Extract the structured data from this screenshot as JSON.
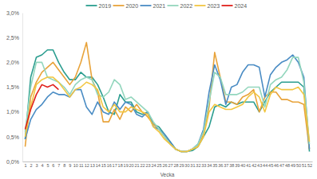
{
  "chart_data": {
    "type": "line",
    "x_label": "Vecka",
    "x": [
      1,
      2,
      3,
      4,
      5,
      6,
      7,
      8,
      9,
      10,
      11,
      12,
      13,
      14,
      15,
      16,
      17,
      18,
      19,
      20,
      21,
      22,
      23,
      24,
      25,
      26,
      27,
      28,
      29,
      30,
      31,
      32,
      33,
      34,
      35,
      36,
      37,
      38,
      39,
      40,
      41,
      42,
      43,
      44,
      45,
      46,
      47,
      48,
      49,
      50,
      51,
      52
    ],
    "xlim": [
      0.5,
      52.5
    ],
    "xticks": [
      1,
      2,
      3,
      4,
      5,
      6,
      7,
      8,
      9,
      10,
      11,
      12,
      13,
      14,
      15,
      16,
      17,
      18,
      19,
      20,
      21,
      22,
      23,
      24,
      25,
      26,
      27,
      28,
      29,
      30,
      31,
      32,
      33,
      34,
      35,
      36,
      37,
      38,
      39,
      40,
      41,
      42,
      43,
      44,
      45,
      46,
      47,
      48,
      49,
      50,
      51,
      52
    ],
    "ylim": [
      0,
      3
    ],
    "yticks": [
      {
        "value": 0,
        "label": "0,0%"
      },
      {
        "value": 0.5,
        "label": "0,5%"
      },
      {
        "value": 1,
        "label": "1,0%"
      },
      {
        "value": 1.5,
        "label": "1,5%"
      },
      {
        "value": 2,
        "label": "2,0%"
      },
      {
        "value": 2.5,
        "label": "2,5%"
      },
      {
        "value": 3,
        "label": "3,0%"
      }
    ],
    "grid": false,
    "legend": "top",
    "series": [
      {
        "name": "2019",
        "color": "#2a9d8f",
        "values": [
          0.45,
          1.7,
          2.1,
          2.15,
          2.25,
          2.25,
          2.0,
          1.8,
          1.65,
          1.65,
          1.8,
          1.7,
          1.7,
          1.55,
          1.3,
          1.0,
          0.95,
          1.35,
          1.2,
          1.2,
          1.0,
          0.95,
          1.0,
          0.75,
          0.7,
          0.55,
          0.4,
          0.25,
          0.2,
          0.2,
          0.22,
          0.3,
          0.5,
          0.7,
          1.1,
          1.15,
          1.1,
          1.2,
          1.15,
          1.2,
          1.2,
          1.2,
          1.0,
          1.2,
          1.4,
          1.5,
          1.6,
          1.6,
          1.6,
          1.6,
          1.5,
          0.2
        ]
      },
      {
        "name": "2020",
        "color": "#e8a33a",
        "values": [
          0.3,
          1.3,
          1.6,
          1.8,
          1.9,
          2.0,
          1.85,
          1.7,
          1.55,
          1.7,
          2.0,
          2.4,
          1.65,
          1.4,
          0.8,
          0.8,
          1.05,
          0.85,
          1.1,
          1.0,
          1.15,
          1.0,
          0.9,
          0.75,
          0.65,
          0.5,
          0.35,
          0.25,
          0.2,
          0.2,
          0.25,
          0.3,
          0.55,
          1.1,
          2.2,
          1.7,
          1.2,
          1.2,
          1.15,
          1.3,
          1.35,
          1.45,
          1.0,
          1.3,
          1.4,
          1.4,
          1.25,
          1.25,
          1.2,
          1.2,
          1.15,
          0.25
        ]
      },
      {
        "name": "2021",
        "color": "#4a8cc4",
        "values": [
          0.45,
          0.85,
          1.05,
          1.15,
          1.3,
          1.4,
          1.35,
          1.35,
          1.3,
          1.45,
          1.45,
          1.1,
          0.95,
          1.2,
          1.0,
          0.95,
          1.2,
          1.05,
          1.2,
          1.15,
          0.95,
          0.9,
          1.0,
          0.7,
          0.65,
          0.55,
          0.4,
          0.25,
          0.2,
          0.2,
          0.25,
          0.35,
          0.65,
          1.4,
          1.95,
          1.65,
          1.15,
          1.5,
          1.55,
          1.8,
          1.95,
          1.95,
          1.9,
          1.3,
          1.75,
          1.9,
          2.0,
          2.05,
          2.15,
          2.0,
          1.7,
          0.25
        ]
      },
      {
        "name": "2022",
        "color": "#93d6bd",
        "values": [
          0.6,
          1.5,
          2.0,
          2.0,
          1.7,
          1.65,
          1.6,
          1.5,
          1.35,
          1.55,
          1.65,
          1.7,
          1.65,
          1.35,
          1.3,
          1.4,
          1.65,
          1.55,
          1.25,
          1.3,
          1.2,
          1.1,
          1.0,
          0.8,
          0.65,
          0.5,
          0.35,
          0.25,
          0.2,
          0.2,
          0.25,
          0.35,
          0.6,
          1.2,
          1.8,
          1.7,
          1.35,
          1.35,
          1.35,
          1.4,
          1.5,
          1.5,
          1.5,
          1.1,
          1.55,
          1.65,
          1.7,
          1.85,
          2.1,
          2.1,
          1.6,
          0.35
        ]
      },
      {
        "name": "2023",
        "color": "#f2c641",
        "values": [
          0.5,
          1.1,
          1.55,
          1.65,
          1.7,
          1.7,
          1.6,
          1.45,
          1.3,
          1.45,
          1.5,
          1.6,
          1.55,
          1.45,
          1.1,
          1.0,
          1.15,
          1.0,
          1.0,
          1.1,
          1.05,
          1.0,
          0.95,
          0.7,
          0.6,
          0.45,
          0.35,
          0.25,
          0.2,
          0.2,
          0.25,
          0.3,
          0.5,
          1.0,
          1.15,
          1.1,
          1.05,
          1.05,
          1.1,
          1.15,
          1.3,
          1.4,
          1.3,
          1.0,
          1.35,
          1.5,
          1.45,
          1.45,
          1.45,
          1.5,
          1.35,
          0.4
        ]
      },
      {
        "name": "2024",
        "color": "#e0201b",
        "values": [
          0.65,
          1.05,
          1.35,
          1.55,
          1.5,
          1.55,
          1.45,
          null,
          null,
          null,
          null,
          null,
          null,
          null,
          null,
          null,
          null,
          null,
          null,
          null,
          null,
          null,
          null,
          null,
          null,
          null,
          null,
          null,
          null,
          null,
          null,
          null,
          null,
          null,
          null,
          null,
          null,
          null,
          null,
          null,
          null,
          null,
          null,
          null,
          null,
          null,
          null,
          null,
          null,
          null,
          null,
          null
        ]
      }
    ]
  }
}
